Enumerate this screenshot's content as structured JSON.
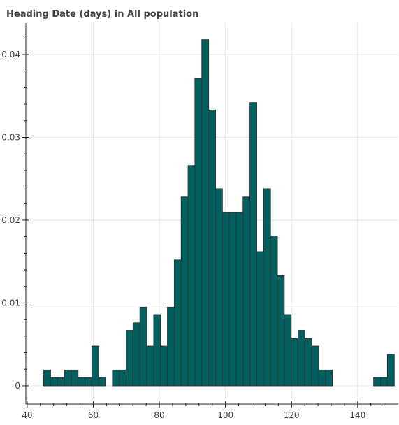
{
  "chart_data": {
    "type": "bar",
    "title": "Heading Date (days) in All population",
    "xlabel": "",
    "ylabel": "",
    "bin_width": 2.08,
    "x_start": 45,
    "xlim": [
      39.6,
      152.3
    ],
    "ylim": [
      -0.0022,
      0.0438
    ],
    "x_ticks": [
      40,
      60,
      80,
      100,
      120,
      140
    ],
    "y_ticks": [
      0,
      0.01,
      0.02,
      0.03,
      0.04
    ],
    "x_tick_labels": [
      "40",
      "60",
      "80",
      "100",
      "120",
      "140"
    ],
    "y_tick_labels": [
      "0",
      "0.01",
      "0.02",
      "0.03",
      "0.04"
    ],
    "values": [
      0.0019,
      0.001,
      0.001,
      0.0019,
      0.0019,
      0.001,
      0.001,
      0.0048,
      0.001,
      0,
      0.0019,
      0.0019,
      0.0067,
      0.0076,
      0.0095,
      0.0048,
      0.0086,
      0.0048,
      0.0095,
      0.0152,
      0.0228,
      0.0266,
      0.0371,
      0.0418,
      0.0333,
      0.0238,
      0.0209,
      0.0209,
      0.0209,
      0.0228,
      0.0342,
      0.0162,
      0.0238,
      0.0181,
      0.0133,
      0.0086,
      0.0057,
      0.0067,
      0.0057,
      0.0048,
      0.0019,
      0.0019,
      0,
      0,
      0,
      0,
      0,
      0,
      0.001,
      0.001,
      0.0038
    ],
    "grid": true,
    "legend": "none",
    "bar_color": "#00605f",
    "bar_edge_color": "#333333"
  }
}
